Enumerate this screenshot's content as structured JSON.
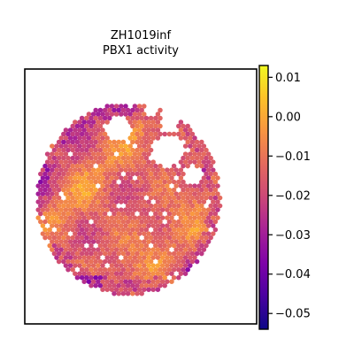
{
  "chart_data": {
    "type": "heatmap",
    "title": "ZH1019inf",
    "subtitle": "PBX1 activity",
    "xlabel": "",
    "ylabel": "",
    "colormap": "plasma",
    "colorbar": {
      "range": [
        -0.054,
        0.013
      ],
      "ticks": [
        0.01,
        0.0,
        -0.01,
        -0.02,
        -0.03,
        -0.04,
        -0.05
      ],
      "tick_labels": [
        "0.01",
        "0.00",
        "−0.01",
        "−0.02",
        "−0.03",
        "−0.04",
        "−0.05"
      ]
    },
    "grid": false,
    "legend": "none"
  }
}
